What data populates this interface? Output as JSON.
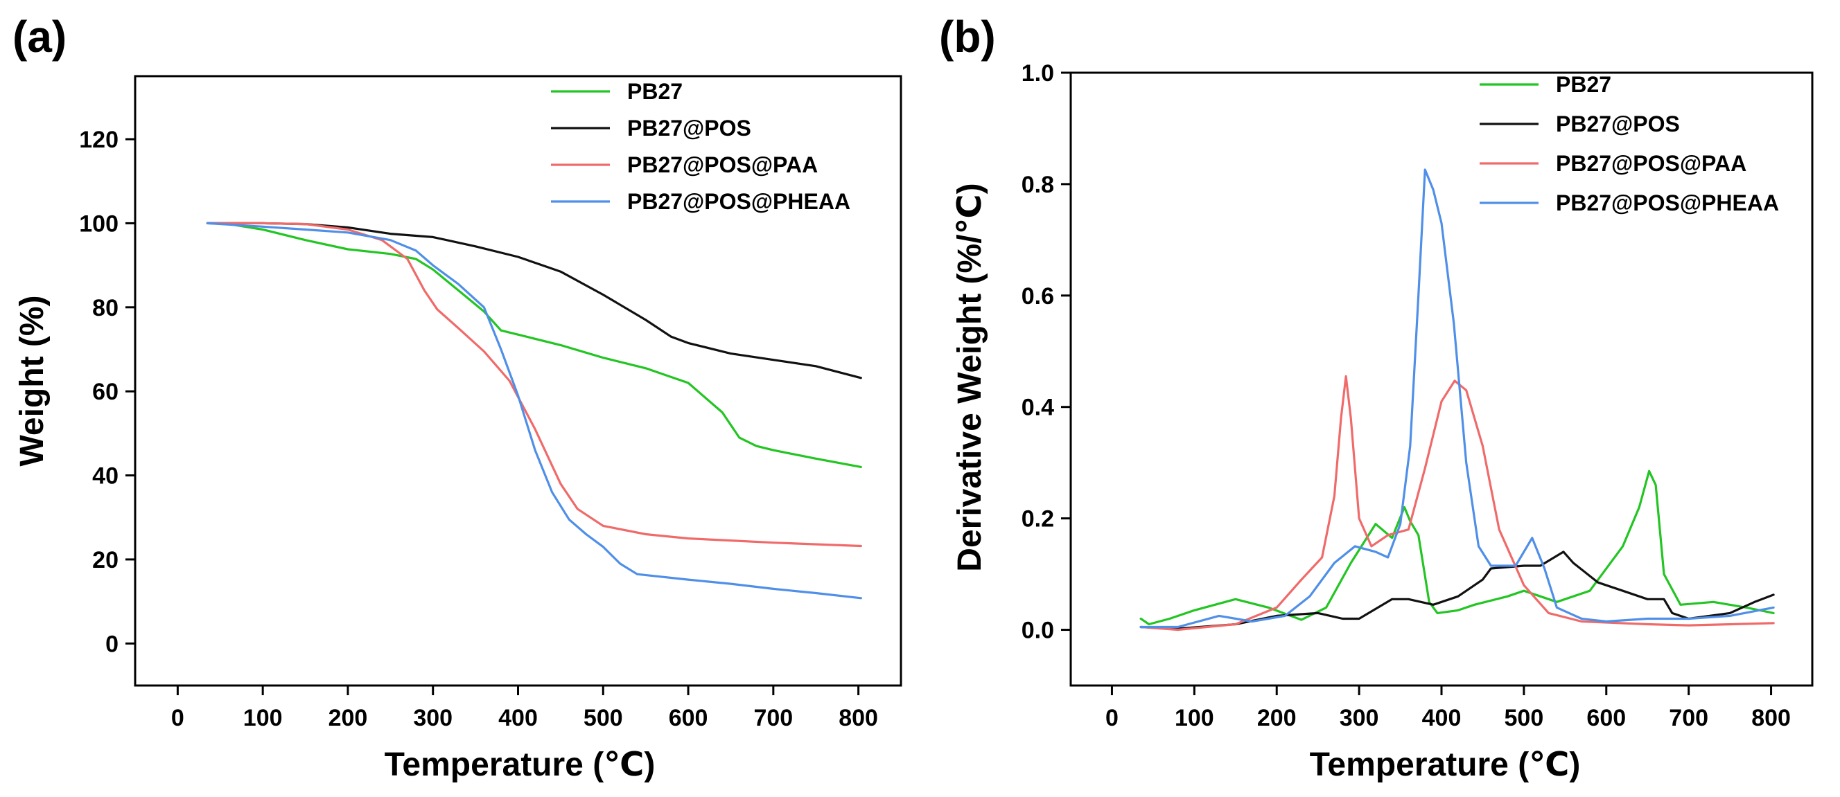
{
  "chart_data": [
    {
      "type": "line",
      "panel_label": "(a)",
      "title": "",
      "xlabel": "Temperature (℃)",
      "ylabel": "Weight (%)",
      "xlim": [
        -50,
        850
      ],
      "ylim": [
        -10,
        135
      ],
      "xticks": [
        0,
        100,
        200,
        300,
        400,
        500,
        600,
        700,
        800
      ],
      "yticks": [
        0,
        20,
        40,
        60,
        80,
        100,
        120
      ],
      "grid": false,
      "legend_position": "top-right",
      "series": [
        {
          "name": "PB27",
          "color": "#22c522",
          "points": [
            [
              35,
              100
            ],
            [
              60,
              99.8
            ],
            [
              100,
              98.5
            ],
            [
              150,
              96
            ],
            [
              200,
              93.8
            ],
            [
              250,
              92.7
            ],
            [
              280,
              91.5
            ],
            [
              300,
              89
            ],
            [
              330,
              84
            ],
            [
              360,
              79
            ],
            [
              380,
              74.5
            ],
            [
              400,
              73.5
            ],
            [
              450,
              71
            ],
            [
              500,
              68
            ],
            [
              550,
              65.5
            ],
            [
              600,
              62
            ],
            [
              640,
              55
            ],
            [
              660,
              49
            ],
            [
              680,
              47
            ],
            [
              700,
              46
            ],
            [
              750,
              44
            ],
            [
              803,
              42
            ]
          ]
        },
        {
          "name": "PB27@POS",
          "color": "#111111",
          "points": [
            [
              35,
              100
            ],
            [
              100,
              100
            ],
            [
              150,
              99.8
            ],
            [
              200,
              99
            ],
            [
              250,
              97.5
            ],
            [
              300,
              96.7
            ],
            [
              350,
              94.5
            ],
            [
              400,
              92
            ],
            [
              450,
              88.5
            ],
            [
              500,
              83
            ],
            [
              550,
              77
            ],
            [
              580,
              73
            ],
            [
              600,
              71.5
            ],
            [
              650,
              69
            ],
            [
              700,
              67.5
            ],
            [
              750,
              66
            ],
            [
              803,
              63.2
            ]
          ]
        },
        {
          "name": "PB27@POS@PAA",
          "color": "#f06a6a",
          "points": [
            [
              35,
              100
            ],
            [
              100,
              100
            ],
            [
              150,
              99.8
            ],
            [
              200,
              98.5
            ],
            [
              240,
              96
            ],
            [
              270,
              91.5
            ],
            [
              290,
              84
            ],
            [
              305,
              79.5
            ],
            [
              330,
              75
            ],
            [
              360,
              69.5
            ],
            [
              390,
              62.5
            ],
            [
              420,
              51
            ],
            [
              450,
              38
            ],
            [
              470,
              32
            ],
            [
              500,
              28
            ],
            [
              550,
              26
            ],
            [
              600,
              25
            ],
            [
              650,
              24.5
            ],
            [
              700,
              24
            ],
            [
              803,
              23.2
            ]
          ]
        },
        {
          "name": "PB27@POS@PHEAA",
          "color": "#4f8fe8",
          "points": [
            [
              35,
              100
            ],
            [
              100,
              99.2
            ],
            [
              150,
              98.5
            ],
            [
              200,
              97.8
            ],
            [
              250,
              96
            ],
            [
              280,
              93.5
            ],
            [
              300,
              90
            ],
            [
              330,
              85.5
            ],
            [
              360,
              80
            ],
            [
              380,
              70
            ],
            [
              400,
              59
            ],
            [
              420,
              46
            ],
            [
              440,
              36
            ],
            [
              460,
              29.5
            ],
            [
              480,
              26
            ],
            [
              500,
              23
            ],
            [
              520,
              19
            ],
            [
              540,
              16.5
            ],
            [
              600,
              15.2
            ],
            [
              650,
              14.2
            ],
            [
              700,
              13
            ],
            [
              750,
              12
            ],
            [
              803,
              10.8
            ]
          ]
        }
      ]
    },
    {
      "type": "line",
      "panel_label": "(b)",
      "title": "",
      "xlabel": "Temperature (℃)",
      "ylabel": "Derivative Weight (%/℃)",
      "xlim": [
        -50,
        850
      ],
      "ylim": [
        -0.1,
        1.0
      ],
      "xticks": [
        0,
        100,
        200,
        300,
        400,
        500,
        600,
        700,
        800
      ],
      "yticks": [
        "0.0",
        "0.2",
        "0.4",
        "0.6",
        "0.8",
        "1.0"
      ],
      "grid": false,
      "legend_position": "top-right",
      "series": [
        {
          "name": "PB27",
          "color": "#22c522",
          "points": [
            [
              35,
              0.02
            ],
            [
              45,
              0.01
            ],
            [
              70,
              0.02
            ],
            [
              100,
              0.035
            ],
            [
              150,
              0.055
            ],
            [
              190,
              0.04
            ],
            [
              230,
              0.018
            ],
            [
              260,
              0.04
            ],
            [
              290,
              0.12
            ],
            [
              320,
              0.19
            ],
            [
              340,
              0.165
            ],
            [
              355,
              0.22
            ],
            [
              362,
              0.195
            ],
            [
              372,
              0.17
            ],
            [
              385,
              0.05
            ],
            [
              395,
              0.03
            ],
            [
              420,
              0.035
            ],
            [
              440,
              0.045
            ],
            [
              480,
              0.06
            ],
            [
              500,
              0.07
            ],
            [
              540,
              0.05
            ],
            [
              580,
              0.07
            ],
            [
              620,
              0.15
            ],
            [
              640,
              0.22
            ],
            [
              652,
              0.285
            ],
            [
              660,
              0.26
            ],
            [
              670,
              0.1
            ],
            [
              690,
              0.045
            ],
            [
              730,
              0.05
            ],
            [
              770,
              0.04
            ],
            [
              803,
              0.03
            ]
          ]
        },
        {
          "name": "PB27@POS",
          "color": "#111111",
          "points": [
            [
              35,
              0.005
            ],
            [
              80,
              0.002
            ],
            [
              150,
              0.01
            ],
            [
              200,
              0.025
            ],
            [
              250,
              0.03
            ],
            [
              280,
              0.02
            ],
            [
              300,
              0.02
            ],
            [
              340,
              0.055
            ],
            [
              360,
              0.055
            ],
            [
              390,
              0.045
            ],
            [
              420,
              0.06
            ],
            [
              450,
              0.09
            ],
            [
              460,
              0.11
            ],
            [
              500,
              0.115
            ],
            [
              520,
              0.115
            ],
            [
              548,
              0.14
            ],
            [
              560,
              0.12
            ],
            [
              590,
              0.085
            ],
            [
              620,
              0.07
            ],
            [
              650,
              0.055
            ],
            [
              670,
              0.055
            ],
            [
              680,
              0.03
            ],
            [
              700,
              0.02
            ],
            [
              750,
              0.03
            ],
            [
              780,
              0.05
            ],
            [
              803,
              0.063
            ]
          ]
        },
        {
          "name": "PB27@POS@PAA",
          "color": "#f06a6a",
          "points": [
            [
              35,
              0.005
            ],
            [
              80,
              0.0
            ],
            [
              150,
              0.01
            ],
            [
              200,
              0.04
            ],
            [
              230,
              0.09
            ],
            [
              255,
              0.13
            ],
            [
              270,
              0.24
            ],
            [
              278,
              0.38
            ],
            [
              284,
              0.455
            ],
            [
              290,
              0.38
            ],
            [
              300,
              0.2
            ],
            [
              315,
              0.15
            ],
            [
              335,
              0.17
            ],
            [
              360,
              0.18
            ],
            [
              380,
              0.29
            ],
            [
              400,
              0.41
            ],
            [
              416,
              0.447
            ],
            [
              430,
              0.43
            ],
            [
              450,
              0.33
            ],
            [
              470,
              0.18
            ],
            [
              500,
              0.08
            ],
            [
              530,
              0.03
            ],
            [
              570,
              0.015
            ],
            [
              650,
              0.01
            ],
            [
              700,
              0.008
            ],
            [
              803,
              0.012
            ]
          ]
        },
        {
          "name": "PB27@POS@PHEAA",
          "color": "#4f8fe8",
          "points": [
            [
              35,
              0.005
            ],
            [
              80,
              0.005
            ],
            [
              130,
              0.025
            ],
            [
              170,
              0.015
            ],
            [
              210,
              0.025
            ],
            [
              240,
              0.06
            ],
            [
              270,
              0.12
            ],
            [
              295,
              0.15
            ],
            [
              320,
              0.14
            ],
            [
              335,
              0.13
            ],
            [
              350,
              0.19
            ],
            [
              362,
              0.33
            ],
            [
              372,
              0.6
            ],
            [
              380,
              0.826
            ],
            [
              390,
              0.79
            ],
            [
              400,
              0.73
            ],
            [
              415,
              0.55
            ],
            [
              430,
              0.3
            ],
            [
              445,
              0.15
            ],
            [
              460,
              0.115
            ],
            [
              490,
              0.115
            ],
            [
              510,
              0.165
            ],
            [
              525,
              0.11
            ],
            [
              540,
              0.04
            ],
            [
              570,
              0.02
            ],
            [
              600,
              0.015
            ],
            [
              650,
              0.02
            ],
            [
              700,
              0.02
            ],
            [
              750,
              0.025
            ],
            [
              803,
              0.04
            ]
          ]
        }
      ]
    }
  ]
}
